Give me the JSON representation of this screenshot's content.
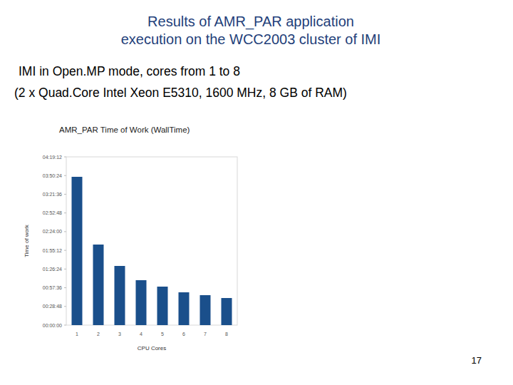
{
  "slide": {
    "title": [
      "Results of AMR_PAR application",
      "execution on the WCC2003 cluster of IMI"
    ],
    "subtitle": [
      "IMI in Open.MP mode, cores from 1 to 8",
      "(2 x Quad.Core Intel Xeon E5310, 1600 MHz, 8 GB of RAM)"
    ],
    "page": "17"
  },
  "chart_data": {
    "type": "bar",
    "title": "AMR_PAR Time of Work (WallTime)",
    "x_label": "CPU Cores",
    "y_label": "Time of work",
    "categories": [
      "1",
      "2",
      "3",
      "4",
      "5",
      "6",
      "7",
      "8"
    ],
    "values": [
      13707,
      7446,
      5469,
      4152,
      3558,
      3031,
      2768,
      2504
    ],
    "color": "#1a4f8b",
    "ylim": [
      0,
      15552
    ],
    "yticks": [
      {
        "value": 0,
        "label": "00:00:00"
      },
      {
        "value": 1728,
        "label": "00:28:48"
      },
      {
        "value": 3456,
        "label": "00:57:36"
      },
      {
        "value": 5184,
        "label": "01:26:24"
      },
      {
        "value": 6912,
        "label": "01:55:12"
      },
      {
        "value": 8640,
        "label": "02:24:00"
      },
      {
        "value": 10368,
        "label": "02:52:48"
      },
      {
        "value": 12096,
        "label": "03:21:36"
      },
      {
        "value": 13824,
        "label": "03:50:24"
      },
      {
        "value": 15552,
        "label": "04:19:12"
      }
    ],
    "grid": false
  }
}
